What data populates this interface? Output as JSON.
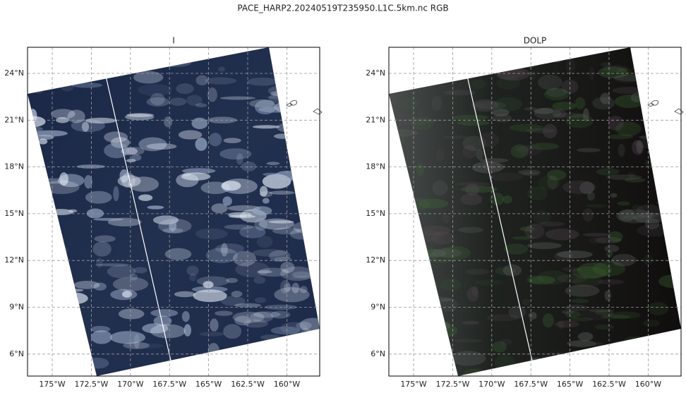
{
  "title": "PACE_HARP2.20240519T235950.L1C.5km.nc RGB",
  "panels": [
    {
      "title": "I",
      "x_tick_labels": [
        "175°W",
        "172.5°W",
        "170°W",
        "167.5°W",
        "165°W",
        "162.5°W",
        "160°W"
      ],
      "y_tick_labels": [
        "24°N",
        "21°N",
        "18°N",
        "15°N",
        "12°N",
        "9°N",
        "6°N"
      ]
    },
    {
      "title": "DOLP",
      "x_tick_labels": [
        "175°W",
        "172.5°W",
        "170°W",
        "167.5°W",
        "165°W",
        "162.5°W",
        "160°W"
      ],
      "y_tick_labels": [
        "24°N",
        "21°N",
        "18°N",
        "15°N",
        "12°N",
        "9°N",
        "6°N"
      ]
    }
  ]
}
